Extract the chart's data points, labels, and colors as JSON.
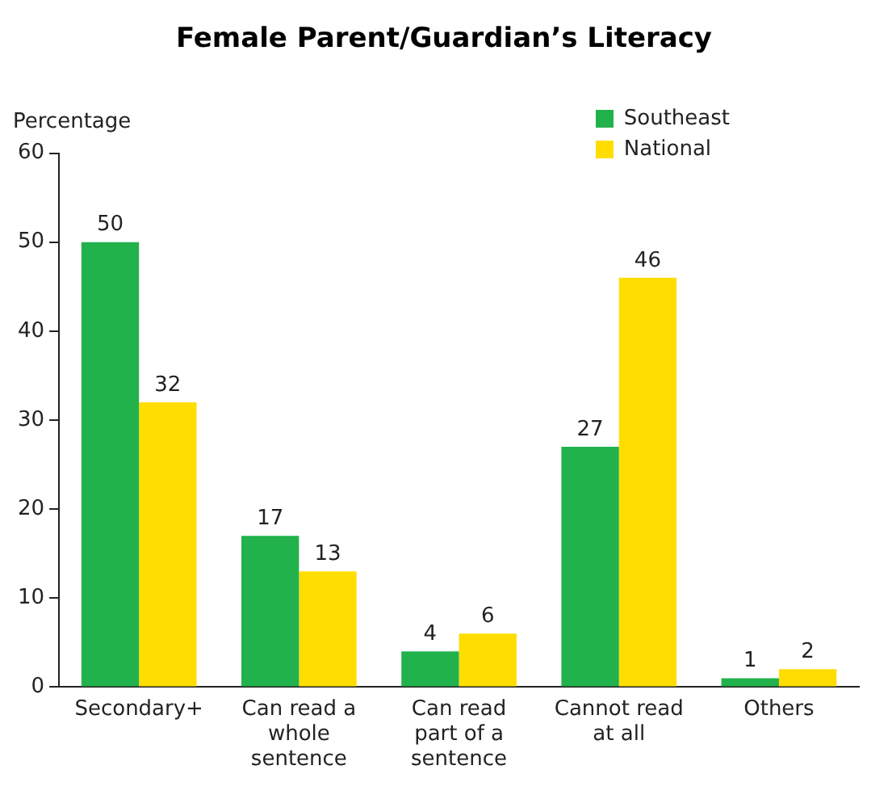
{
  "chart_data": {
    "type": "bar",
    "title": "Female Parent/Guardian’s Literacy",
    "ylabel": "Percentage",
    "categories": [
      "Secondary+",
      "Can read a whole sentence",
      "Can read part of a sentence",
      "Cannot read at all",
      "Others"
    ],
    "series": [
      {
        "name": "Southeast",
        "color": "#22b24c",
        "values": [
          50,
          17,
          4,
          27,
          1
        ]
      },
      {
        "name": "National",
        "color": "#ffdd00",
        "values": [
          32,
          13,
          6,
          46,
          2
        ]
      }
    ],
    "ylim": [
      0,
      60
    ],
    "yticks": [
      0,
      10,
      20,
      30,
      40,
      50,
      60
    ],
    "grid": false,
    "legend": "top right",
    "data_labels": true
  }
}
